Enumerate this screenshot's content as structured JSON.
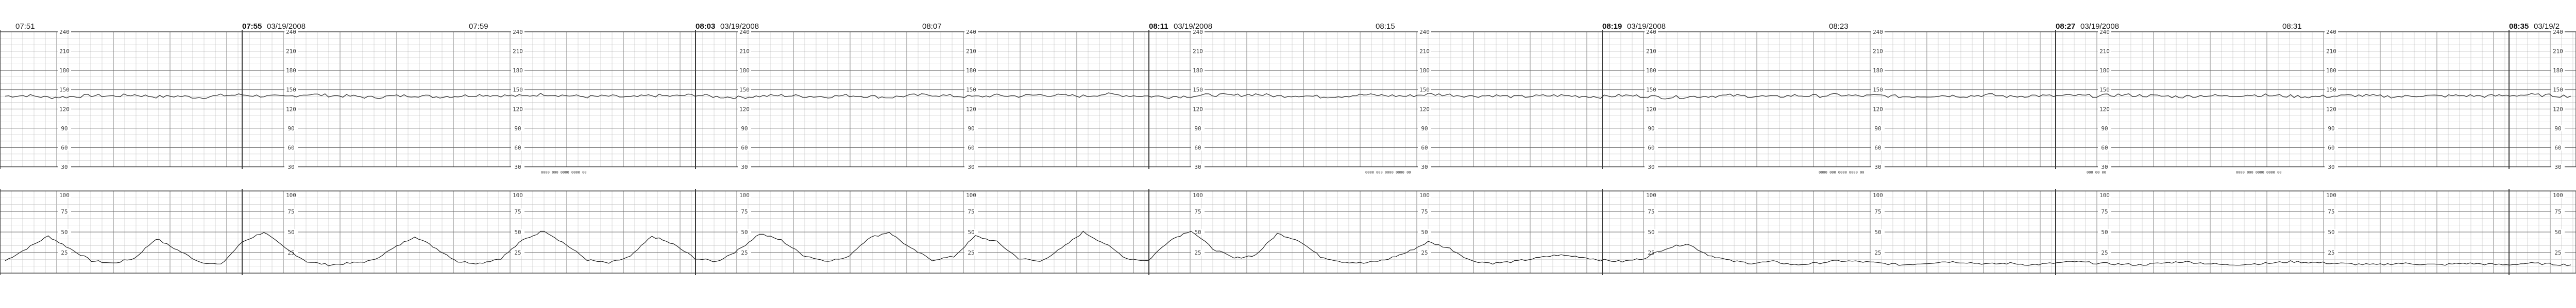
{
  "chart_data": [
    {
      "type": "line",
      "panel": "fetal-heart-rate",
      "ylim": [
        30,
        240
      ],
      "scale_ticks": [
        "240",
        "210",
        "180",
        "150",
        "120",
        "90",
        "60",
        "30"
      ],
      "time_marks": [
        "07:51",
        "07:55",
        "07:59",
        "08:03",
        "08:07",
        "08:11",
        "08:15",
        "08:19",
        "08:23",
        "08:27",
        "08:31",
        "08:35"
      ],
      "series": [
        {
          "values": [
            140,
            141,
            138,
            139,
            141,
            140,
            142,
            139,
            140,
            138,
            141,
            142,
            140,
            139,
            143,
            141,
            140,
            138,
            140,
            141,
            139,
            140,
            142,
            141,
            140,
            143,
            141,
            139,
            140,
            138,
            141,
            140,
            142,
            139,
            138,
            140,
            141,
            140,
            139,
            141,
            140,
            138,
            141,
            142,
            140,
            139,
            141,
            140,
            142,
            141,
            140,
            143,
            141,
            140,
            139,
            140,
            142,
            141,
            143,
            140,
            141,
            139,
            140,
            142,
            141,
            140,
            143,
            142,
            140,
            141,
            139,
            140,
            141,
            140,
            139,
            141,
            140,
            138,
            139,
            140,
            141,
            140,
            139,
            141,
            140,
            142,
            140,
            141,
            139,
            140,
            141,
            140,
            142,
            139,
            141,
            140,
            141,
            140,
            142,
            141,
            140,
            139,
            141,
            140,
            142,
            141,
            140,
            139,
            140,
            141,
            140,
            139,
            141,
            140,
            141,
            140,
            141,
            142,
            141,
            140
          ]
        }
      ]
    },
    {
      "type": "line",
      "panel": "uterine-activity",
      "ylim": [
        0,
        100
      ],
      "scale_ticks": [
        "100",
        "75",
        "50",
        "25"
      ],
      "time_marks": [
        "07:51",
        "07:55",
        "07:59",
        "08:03",
        "08:07",
        "08:11",
        "08:15",
        "08:19",
        "08:23",
        "08:27",
        "08:31",
        "08:35"
      ],
      "series": [
        {
          "values": [
            15,
            30,
            45,
            30,
            15,
            12,
            18,
            42,
            28,
            14,
            10,
            38,
            50,
            30,
            14,
            10,
            12,
            15,
            30,
            45,
            30,
            14,
            12,
            18,
            40,
            52,
            35,
            16,
            12,
            20,
            45,
            35,
            18,
            14,
            28,
            48,
            40,
            22,
            15,
            18,
            42,
            50,
            30,
            16,
            20,
            45,
            38,
            18,
            14,
            30,
            50,
            36,
            18,
            15,
            40,
            52,
            30,
            18,
            22,
            48,
            40,
            20,
            14,
            12,
            16,
            25,
            38,
            30,
            15,
            12,
            14,
            18,
            22,
            20,
            16,
            14,
            18,
            30,
            36,
            22,
            15,
            12,
            14,
            10,
            12,
            15,
            14,
            12,
            10,
            12,
            14,
            13,
            11,
            12,
            10,
            12,
            14,
            12,
            11,
            10,
            12,
            14,
            12,
            10,
            11,
            12,
            14,
            13,
            12,
            11,
            10,
            12,
            11,
            10,
            12,
            11,
            10,
            12,
            11,
            10
          ]
        }
      ]
    }
  ],
  "header": {
    "blocks": [
      {
        "time": "07:51",
        "date": ""
      },
      {
        "time": "07:55",
        "date": "03/19/2008"
      },
      {
        "time": "07:59",
        "date": ""
      },
      {
        "time": "08:03",
        "date": "03/19/2008"
      },
      {
        "time": "08:07",
        "date": ""
      },
      {
        "time": "08:11",
        "date": "03/19/2008"
      },
      {
        "time": "08:15",
        "date": ""
      },
      {
        "time": "08:19",
        "date": "03/19/2008"
      },
      {
        "time": "08:23",
        "date": ""
      },
      {
        "time": "08:27",
        "date": "03/19/2008"
      },
      {
        "time": "08:31",
        "date": ""
      },
      {
        "time": "08:35",
        "date": "03/19/2"
      }
    ]
  },
  "annotations": [
    "0000 000 0000 0000 00",
    "0000 000 0000 0000 00",
    "0000 000 0000 0000 00",
    "000 00 00",
    "0000 000 0000 0000 00"
  ],
  "colors": {
    "grid_major": "#3a3a3a",
    "grid_minor": "#bdbdbd",
    "trace": "#222222",
    "paper": "#ffffff"
  }
}
